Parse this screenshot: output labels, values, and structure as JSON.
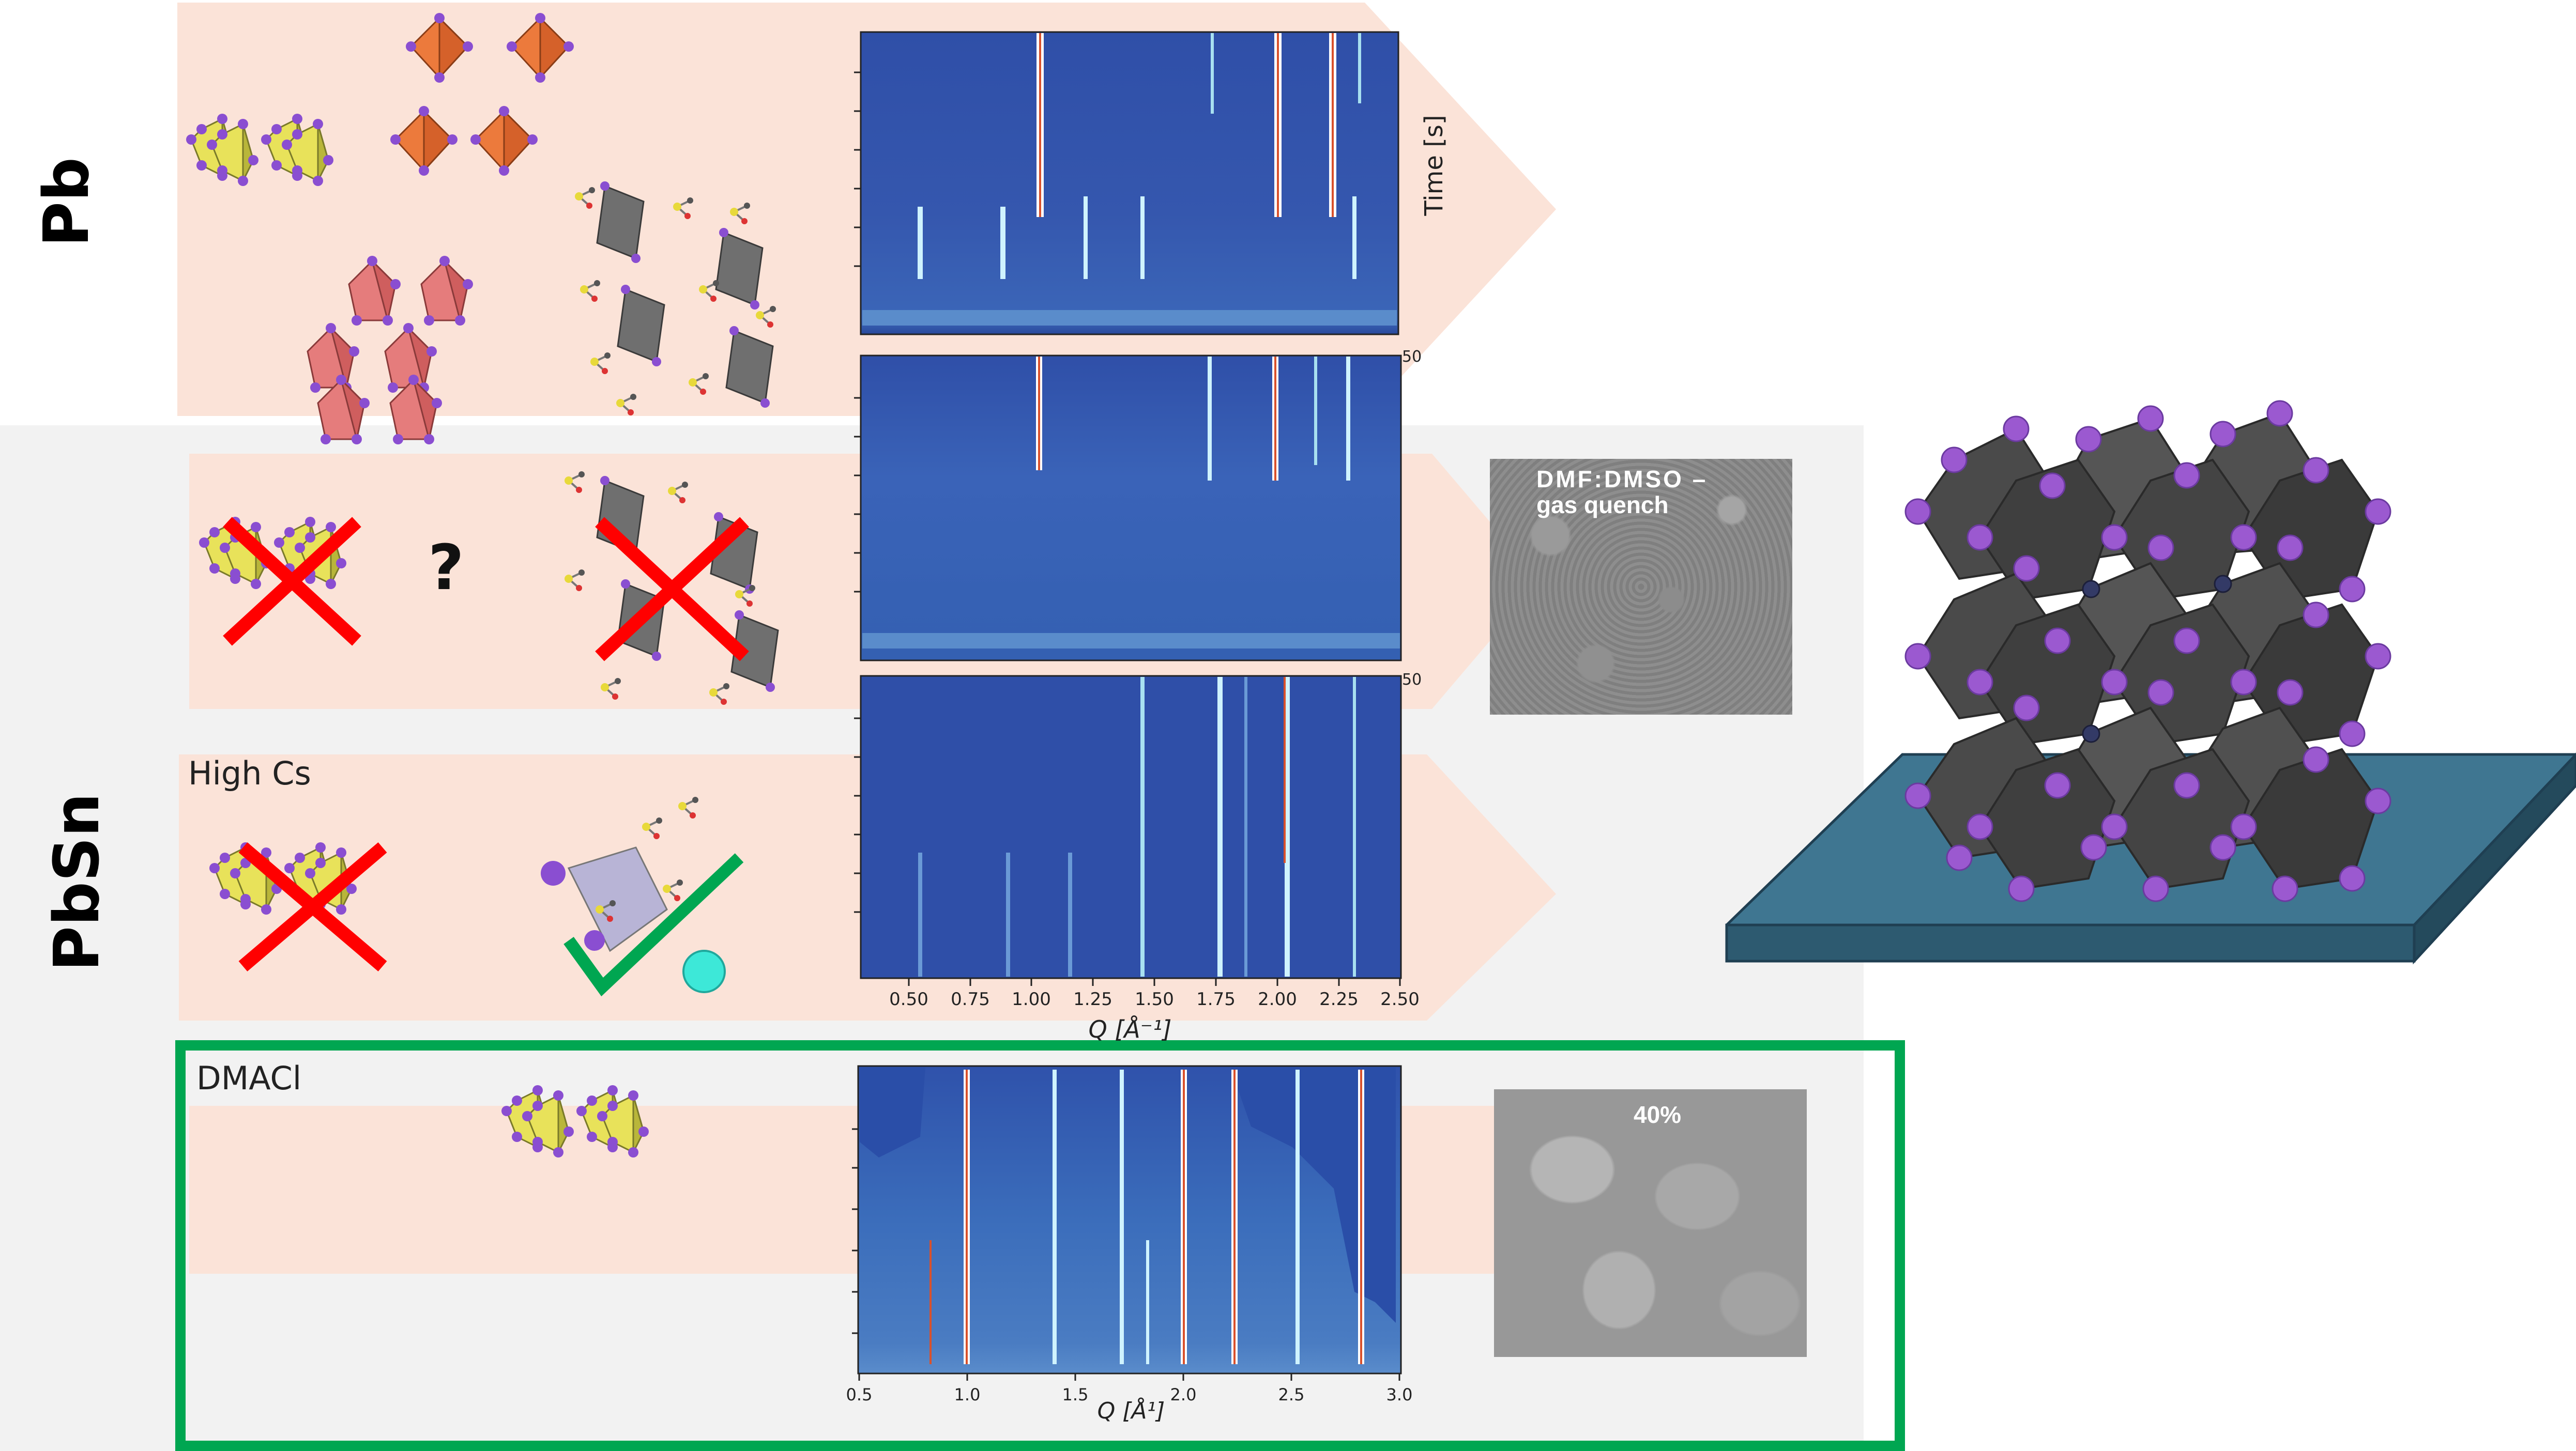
{
  "labels": {
    "pb": "Pb",
    "pbsn": "PbSn",
    "high_cs": "High Cs",
    "dmacl": "DMACl",
    "question": "?"
  },
  "axes": {
    "time_label": "Time [s]",
    "q_label_upper": "Q [Å⁻¹]",
    "q_label_lower": "Q [Å¹]",
    "upper_ticks": [
      "0.50",
      "0.75",
      "1.00",
      "1.25",
      "1.50",
      "1.75",
      "2.00",
      "2.25",
      "2.50"
    ],
    "lower_ticks": [
      "0.5",
      "1.0",
      "1.5",
      "2.0",
      "2.5",
      "3.0"
    ],
    "partial_tick": "50"
  },
  "sem": {
    "top_caption_line1": "DMF:DMSO –",
    "top_caption_line2": "gas quench",
    "bottom_caption": "40%"
  },
  "colors": {
    "arrow_fill": "#fbe3d8",
    "panel_bg": "#f2f2f2",
    "highlight_box": "#00a651",
    "cross": "#ff0000",
    "check": "#00a651",
    "heatmap_bg": "#2f4fa8",
    "substrate": "#3f7691",
    "octahedron": "#4a4a4a",
    "halide": "#9b59d0"
  },
  "icons": [
    "layered-perovskite-icon",
    "orange-octahedra-icon",
    "red-octahedra-icon",
    "solvent-complex-icon",
    "red-cross-icon",
    "green-check-icon",
    "cs-ion-icon",
    "perovskite-3d-icon"
  ]
}
